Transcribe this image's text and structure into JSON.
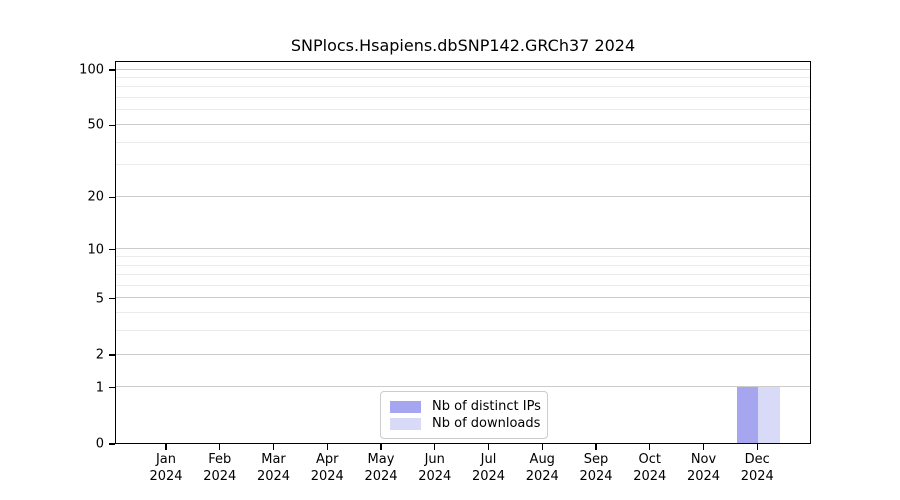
{
  "chart_data": {
    "type": "bar",
    "title": "SNPlocs.Hsapiens.dbSNP142.GRCh37 2024",
    "categories": [
      "Jan 2024",
      "Feb 2024",
      "Mar 2024",
      "Apr 2024",
      "May 2024",
      "Jun 2024",
      "Jul 2024",
      "Aug 2024",
      "Sep 2024",
      "Oct 2024",
      "Nov 2024",
      "Dec 2024"
    ],
    "series": [
      {
        "name": "Nb of distinct IPs",
        "color": "#a5a5f0",
        "values": [
          0,
          0,
          0,
          0,
          0,
          0,
          0,
          0,
          0,
          0,
          0,
          1
        ]
      },
      {
        "name": "Nb of downloads",
        "color": "#d9d9f8",
        "values": [
          0,
          0,
          0,
          0,
          0,
          0,
          0,
          0,
          0,
          0,
          0,
          1
        ]
      }
    ],
    "xlabel": "",
    "ylabel": "",
    "yscale": "log1p",
    "ylim": [
      0,
      112
    ],
    "yticks": [
      0,
      1,
      2,
      5,
      10,
      20,
      50,
      100
    ],
    "minor_gridlines": [
      3,
      4,
      6,
      7,
      8,
      9,
      30,
      40,
      60,
      70,
      80,
      90
    ],
    "grid": "horizontal",
    "legend_position": "bottom-center",
    "bar_align": "pair-centered-on-tick"
  },
  "colors": {
    "distinct_ips": "#a5a5f0",
    "downloads": "#d9d9f8",
    "major_grid": "#cccccc",
    "minor_grid": "#ebebeb",
    "spine": "#000000"
  }
}
